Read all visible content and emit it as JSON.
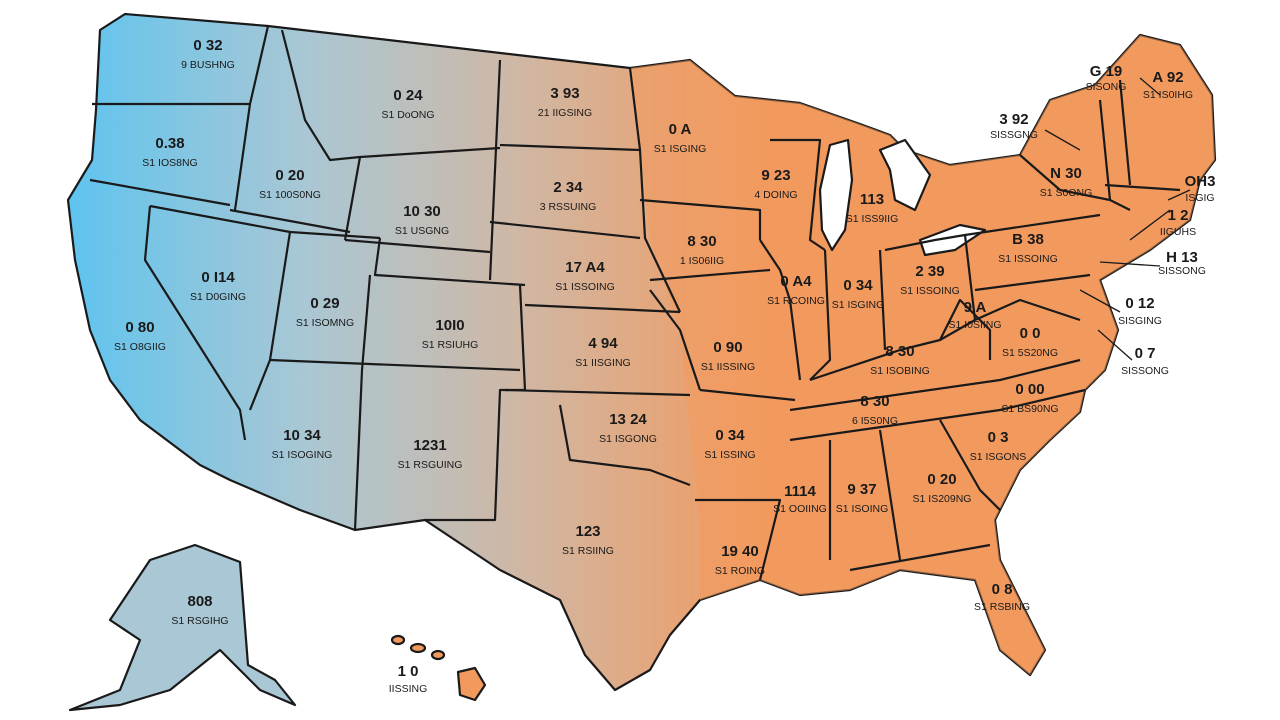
{
  "colors": {
    "west": "#5cc4f0",
    "mountain": "#a9c7d4",
    "plains": "#d0b7a4",
    "east": "#f29a5e",
    "outline": "#1a1a1a"
  },
  "states": {
    "wa": {
      "value": "0 32",
      "sub": "9 BUSHNG"
    },
    "or": {
      "value": "0.38",
      "sub": "S1 IOS8NG"
    },
    "ca": {
      "value": "0 80",
      "sub": "S1 O8GIIG"
    },
    "id": {
      "value": "0 20",
      "sub": "S1 100S0NG"
    },
    "nv": {
      "value": "0 I14",
      "sub": "S1 D0GING"
    },
    "mt": {
      "value": "0 24",
      "sub": "S1 DoONG"
    },
    "wy": {
      "value": "10 30",
      "sub": "S1 USGNG"
    },
    "ut": {
      "value": "0 29",
      "sub": "S1 ISOMNG"
    },
    "co": {
      "value": "10I0",
      "sub": "S1 RSIUHG"
    },
    "az": {
      "value": "10 34",
      "sub": "S1 ISOGING"
    },
    "nm": {
      "value": "1231",
      "sub": "S1 RSGUING"
    },
    "nd": {
      "value": "3 93",
      "sub": "21 IIGSING"
    },
    "sd": {
      "value": "2 34",
      "sub": "3 RSSUING"
    },
    "ne": {
      "value": "17 A4",
      "sub": "S1 ISSOING"
    },
    "ks": {
      "value": "4 94",
      "sub": "S1 IISGING"
    },
    "ok": {
      "value": "13 24",
      "sub": "S1 ISGONG"
    },
    "tx": {
      "value": "123",
      "sub": "S1 RSIING"
    },
    "mn": {
      "value": "0 A",
      "sub": "S1 ISGING"
    },
    "ia": {
      "value": "8 30",
      "sub": "1 IS06IIG"
    },
    "mo": {
      "value": "0 90",
      "sub": "S1 IISSING"
    },
    "ar": {
      "value": "0 34",
      "sub": "S1 ISSING"
    },
    "la": {
      "value": "19 40",
      "sub": "S1 ROING"
    },
    "wi": {
      "value": "9 23",
      "sub": "4 DOING"
    },
    "il": {
      "value": "0 A4",
      "sub": "S1 RCOING"
    },
    "mi": {
      "value": "113",
      "sub": "S1 ISS9IIG"
    },
    "in": {
      "value": "0 34",
      "sub": "S1 ISGING"
    },
    "oh": {
      "value": "2 39",
      "sub": "S1 ISSOING"
    },
    "ky": {
      "value": "8 30",
      "sub": "S1 ISOBING"
    },
    "tn": {
      "value": "8 30",
      "sub": "6 I5S0NG"
    },
    "ms": {
      "value": "1114",
      "sub": "S1 OOIING"
    },
    "al": {
      "value": "9 37",
      "sub": "S1 ISOING"
    },
    "ga": {
      "value": "0 20",
      "sub": "S1 IS209NG"
    },
    "fl": {
      "value": "0 8",
      "sub": "S1 RSBING"
    },
    "sc": {
      "value": "0 3",
      "sub": "S1 ISGONS"
    },
    "nc": {
      "value": "0 00",
      "sub": "S1 BS90NG"
    },
    "va": {
      "value": "0 0",
      "sub": "S1 5S20NG"
    },
    "wv": {
      "value": "9 A",
      "sub": "S1 I0SIING"
    },
    "pa": {
      "value": "B 38",
      "sub": "S1 ISSOING"
    },
    "ny": {
      "value": "N 30",
      "sub": "S1 S0ONG"
    },
    "me": {
      "value": "A 92",
      "sub": "S1 IS0IHG"
    },
    "ak": {
      "value": "808",
      "sub": "S1 RSGIHG"
    },
    "hi": {
      "value": "1 0",
      "sub": "IISSING"
    }
  },
  "callouts": {
    "vt": {
      "value": "G 19",
      "sub": "SISONG"
    },
    "nh": {
      "value": "3 92",
      "sub": "SISSGNG"
    },
    "ma": {
      "value": "OH3",
      "sub": "ISGIG"
    },
    "ri": {
      "value": "1 2",
      "sub": "IIGUHS"
    },
    "ct": {
      "value": "H 13",
      "sub": "SISSONG"
    },
    "md": {
      "value": "0 12",
      "sub": "SISGING"
    },
    "de": {
      "value": "0 7",
      "sub": "SISSONG"
    }
  }
}
